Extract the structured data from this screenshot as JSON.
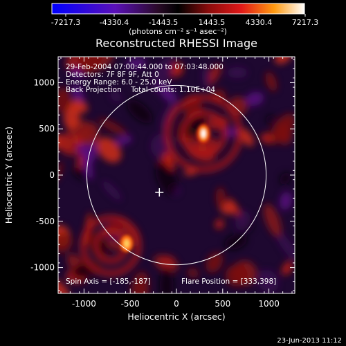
{
  "colorbar": {
    "tick_labels": [
      "-7217.3",
      "-4330.4",
      "-1443.5",
      "1443.5",
      "4330.4",
      "7217.3"
    ],
    "units_label": "(photons cm⁻² s⁻¹ asec⁻²)",
    "range": [
      -7217.3,
      7217.3
    ]
  },
  "title": "Reconstructed RHESSI Image",
  "info_lines": [
    "29-Feb-2004 07:00:44.000 to 07:03:48.000",
    "Detectors: 7F 8F 9F, Att 0",
    "Energy Range: 6.0 - 25.0 keV",
    "Back Projection    Total counts: 1.10E+04"
  ],
  "spin_axis": "Spin Axis = [-185,-187]",
  "flare_position": "Flare Position = [333,398]",
  "x_axis": {
    "label": "Heliocentric X (arcsec)",
    "ticks": [
      -1000,
      -500,
      0,
      500,
      1000
    ],
    "tick_labels": [
      "-1000",
      "-500",
      "0",
      "500",
      "1000"
    ],
    "range": [
      -1280,
      1280
    ]
  },
  "y_axis": {
    "label": "Heliocentric Y (arcsec)",
    "ticks": [
      -1000,
      -500,
      0,
      500,
      1000
    ],
    "tick_labels": [
      "-1000",
      "-500",
      "0",
      "500",
      "1000"
    ],
    "range": [
      -1280,
      1280
    ]
  },
  "limb_radius_arcsec": 970,
  "spin_axis_point": [
    -185,
    -187
  ],
  "flare_point": [
    333,
    398
  ],
  "footer_timestamp": "23-Jun-2013 11:12",
  "colors": {
    "background": "#000000",
    "text": "#ffffff"
  }
}
